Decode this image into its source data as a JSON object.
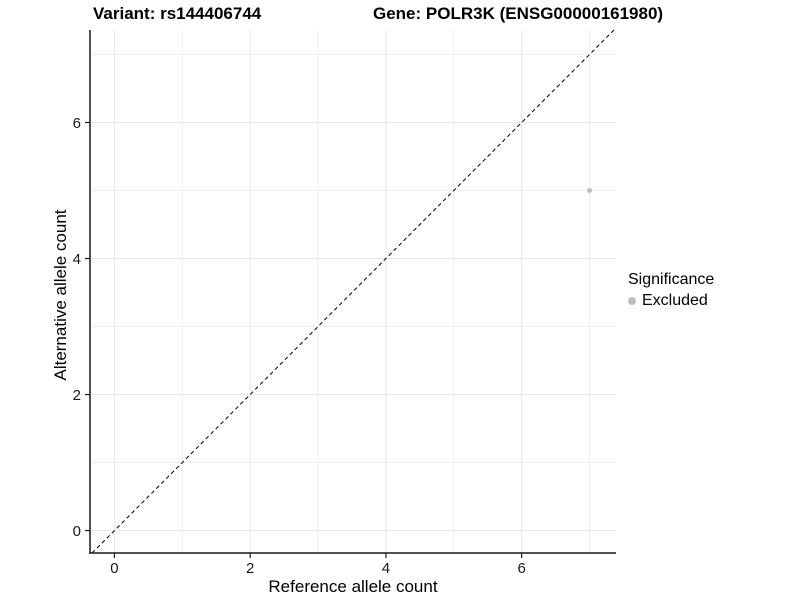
{
  "chart_data": {
    "type": "scatter",
    "title_left": "Variant: rs144406744",
    "title_right": "Gene: POLR3K (ENSG00000161980)",
    "xlabel": "Reference allele count",
    "ylabel": "Alternative allele count",
    "xlim": [
      -0.36,
      7.39
    ],
    "ylim": [
      -0.33,
      7.36
    ],
    "x_ticks": [
      0,
      2,
      4,
      6
    ],
    "y_ticks": [
      0,
      2,
      4,
      6
    ],
    "x_minor_ticks": [
      1,
      3,
      5,
      7
    ],
    "y_minor_ticks": [
      1,
      3,
      5,
      7
    ],
    "grid": "major+minor",
    "series": [
      {
        "name": "Excluded",
        "color": "#bebebe",
        "points": [
          {
            "x": 7,
            "y": 5
          }
        ]
      }
    ],
    "reference_line": {
      "type": "identity",
      "equation": "y = x",
      "style": "dashed",
      "color": "#000000"
    },
    "legend": {
      "title": "Significance",
      "position": "right",
      "entries": [
        {
          "label": "Excluded",
          "color": "#bebebe"
        }
      ]
    },
    "theme": {
      "background": "#ffffff",
      "grid_major": "#e6e6e6",
      "grid_minor": "#f0f0f0",
      "axis_line": "#1a1a1a",
      "tick_label_color": "#1a1a1a",
      "point_radius": 2.5
    }
  }
}
